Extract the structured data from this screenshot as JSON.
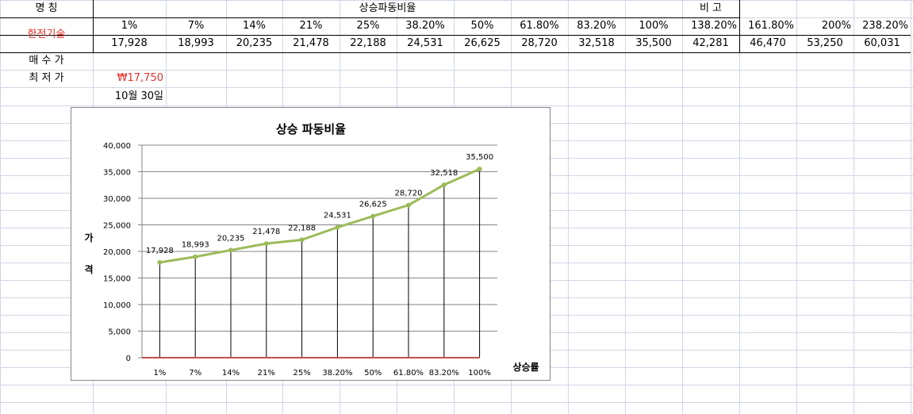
{
  "sheet": {
    "row1": {
      "name_header": "명      칭",
      "ratio_header": "상승파동비율",
      "note_header": "비      고"
    },
    "company": "한전기술",
    "percents": [
      "1%",
      "7%",
      "14%",
      "21%",
      "25%",
      "38.20%",
      "50%",
      "61.80%",
      "83.20%",
      "100%",
      "138.20%",
      "161.80%",
      "200%",
      "238.20%"
    ],
    "prices": [
      "17,928",
      "18,993",
      "20,235",
      "21,478",
      "22,188",
      "24,531",
      "26,625",
      "28,720",
      "32,518",
      "35,500",
      "42,281",
      "46,470",
      "53,250",
      "60,031"
    ],
    "buy_price_label": "매 수 가",
    "low_price_label": "최 저 가",
    "low_price_value": "₩17,750",
    "date_value": "10월 30일"
  },
  "colors": {
    "company_text": "#e8302a",
    "low_price_text": "#e8302a",
    "series_line": "#9bbb59",
    "baseline": "#c0504d",
    "gridline": "#868686"
  },
  "chart_data": {
    "type": "line",
    "title": "상승 파동비율",
    "ylabel": "가\n격",
    "xlabel": "상승률",
    "categories": [
      "1%",
      "7%",
      "14%",
      "21%",
      "25%",
      "38.20%",
      "50%",
      "61.80%",
      "83.20%",
      "100%"
    ],
    "series": [
      {
        "values": [
          17928,
          18993,
          20235,
          21478,
          22188,
          24531,
          26625,
          28720,
          32518,
          35500
        ]
      },
      {
        "values": [
          0,
          0,
          0,
          0,
          0,
          0,
          0,
          0,
          0,
          0
        ]
      }
    ],
    "data_labels": [
      "17,928",
      "18,993",
      "20,235",
      "21,478",
      "22,188",
      "24,531",
      "26,625",
      "28,720",
      "32,518",
      "35,500"
    ],
    "yticks": [
      "0",
      "5,000",
      "10,000",
      "15,000",
      "20,000",
      "25,000",
      "30,000",
      "35,000",
      "40,000"
    ],
    "ylim": [
      0,
      40000
    ],
    "drop_lines": true,
    "grid": true,
    "legend": "none"
  }
}
